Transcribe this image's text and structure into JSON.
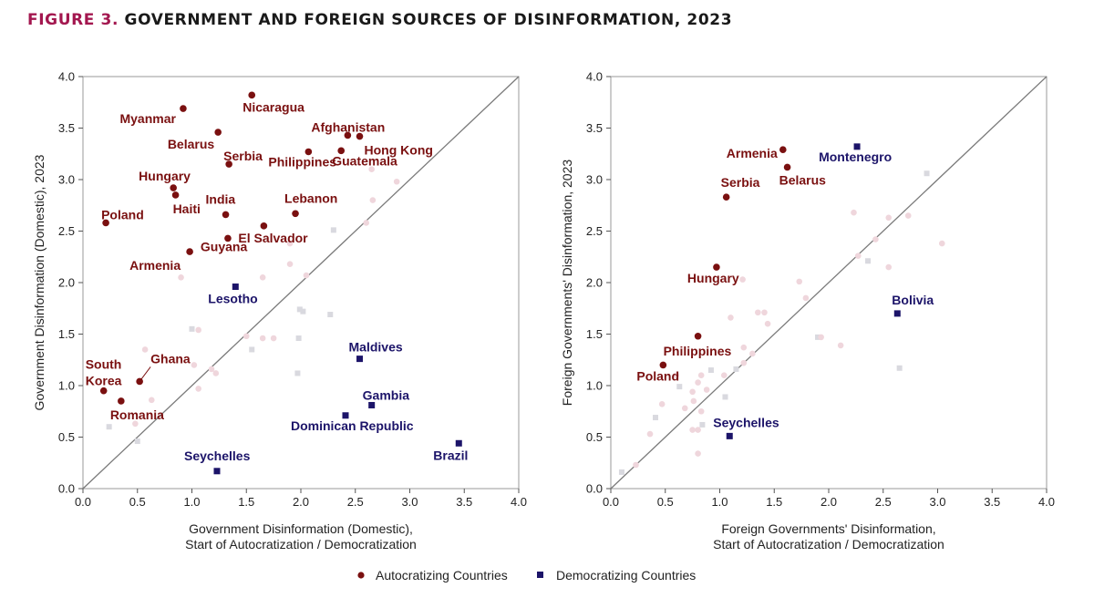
{
  "figure": {
    "number_label": "FIGURE 3.",
    "title": "GOVERNMENT AND FOREIGN SOURCES OF DISINFORMATION, 2023"
  },
  "colors": {
    "autocratizing": "#7a1010",
    "democratizing": "#1c1469",
    "background_circle": "#efd6dc",
    "background_square": "#d9d9df",
    "diagonal": "#7a7a7a",
    "figure_number": "#a3174f"
  },
  "legend": {
    "autocratizing_label": "Autocratizing Countries",
    "democratizing_label": "Democratizing Countries"
  },
  "chart_data": [
    {
      "type": "scatter",
      "xlabel": "Government Disinformation (Domestic),\nStart of Autocratization / Democratization",
      "ylabel": "Government Disinformation (Domestic), 2023",
      "xlim": [
        0,
        4
      ],
      "ylim": [
        0,
        4
      ],
      "ticks": [
        "0.0",
        "0.5",
        "1.0",
        "1.5",
        "2.0",
        "2.5",
        "3.0",
        "3.5",
        "4.0"
      ],
      "diagonal": true,
      "grid": false,
      "legend_placement": "bottom",
      "autocratizing": [
        {
          "name": "Myanmar",
          "x": 0.92,
          "y": 3.69
        },
        {
          "name": "Nicaragua",
          "x": 1.55,
          "y": 3.82
        },
        {
          "name": "Belarus",
          "x": 1.24,
          "y": 3.46
        },
        {
          "name": "Afghanistan",
          "x": 2.43,
          "y": 3.43
        },
        {
          "name": "Hong Kong",
          "x": 2.54,
          "y": 3.42
        },
        {
          "name": "Serbia",
          "x": 1.34,
          "y": 3.15
        },
        {
          "name": "Philippines",
          "x": 2.07,
          "y": 3.27
        },
        {
          "name": "Guatemala",
          "x": 2.37,
          "y": 3.28
        },
        {
          "name": "Hungary",
          "x": 0.83,
          "y": 2.92
        },
        {
          "name": "Haiti",
          "x": 0.85,
          "y": 2.85
        },
        {
          "name": "India",
          "x": 1.31,
          "y": 2.66
        },
        {
          "name": "Poland",
          "x": 0.21,
          "y": 2.58
        },
        {
          "name": "Lebanon",
          "x": 1.95,
          "y": 2.67
        },
        {
          "name": "El Salvador",
          "x": 1.66,
          "y": 2.55
        },
        {
          "name": "Guyana",
          "x": 1.33,
          "y": 2.43
        },
        {
          "name": "Armenia",
          "x": 0.98,
          "y": 2.3
        },
        {
          "name": "South Korea",
          "x": 0.19,
          "y": 0.95
        },
        {
          "name": "Ghana",
          "x": 0.52,
          "y": 1.04
        },
        {
          "name": "Romania",
          "x": 0.35,
          "y": 0.85
        }
      ],
      "democratizing": [
        {
          "name": "Lesotho",
          "x": 1.4,
          "y": 1.96
        },
        {
          "name": "Maldives",
          "x": 2.54,
          "y": 1.26
        },
        {
          "name": "Gambia",
          "x": 2.65,
          "y": 0.81
        },
        {
          "name": "Dominican Republic",
          "x": 2.41,
          "y": 0.71
        },
        {
          "name": "Brazil",
          "x": 3.45,
          "y": 0.44
        },
        {
          "name": "Seychelles",
          "x": 1.23,
          "y": 0.17
        }
      ],
      "background_circles": [
        [
          2.88,
          2.98
        ],
        [
          2.66,
          2.8
        ],
        [
          2.6,
          2.58
        ],
        [
          2.65,
          3.1
        ],
        [
          1.9,
          2.38
        ],
        [
          1.9,
          2.18
        ],
        [
          2.05,
          2.07
        ],
        [
          1.65,
          2.05
        ],
        [
          0.9,
          2.05
        ],
        [
          1.65,
          1.46
        ],
        [
          1.75,
          1.46
        ],
        [
          1.06,
          1.54
        ],
        [
          0.57,
          1.35
        ],
        [
          1.02,
          1.2
        ],
        [
          1.22,
          1.12
        ],
        [
          1.18,
          1.16
        ],
        [
          1.06,
          0.97
        ],
        [
          0.63,
          0.86
        ],
        [
          0.48,
          0.63
        ],
        [
          1.5,
          1.48
        ]
      ],
      "background_squares": [
        [
          2.3,
          2.51
        ],
        [
          1.99,
          1.74
        ],
        [
          2.02,
          1.72
        ],
        [
          1.98,
          1.46
        ],
        [
          2.27,
          1.69
        ],
        [
          1.97,
          1.12
        ],
        [
          1.55,
          1.35
        ],
        [
          1.0,
          1.55
        ],
        [
          0.5,
          0.46
        ],
        [
          0.24,
          0.6
        ]
      ]
    },
    {
      "type": "scatter",
      "xlabel": "Foreign Governments' Disinformation,\nStart of Autocratization / Democratization",
      "ylabel": "Foreign Governments' Disinformation, 2023",
      "xlim": [
        0,
        4
      ],
      "ylim": [
        0,
        4
      ],
      "ticks": [
        "0.0",
        "0.5",
        "1.0",
        "1.5",
        "2.0",
        "2.5",
        "3.0",
        "3.5",
        "4.0"
      ],
      "diagonal": true,
      "grid": false,
      "legend_placement": "bottom",
      "autocratizing": [
        {
          "name": "Armenia",
          "x": 1.58,
          "y": 3.29
        },
        {
          "name": "Belarus",
          "x": 1.62,
          "y": 3.12
        },
        {
          "name": "Serbia",
          "x": 1.06,
          "y": 2.83
        },
        {
          "name": "Hungary",
          "x": 0.97,
          "y": 2.15
        },
        {
          "name": "Philippines",
          "x": 0.8,
          "y": 1.48
        },
        {
          "name": "Poland",
          "x": 0.48,
          "y": 1.2
        }
      ],
      "democratizing": [
        {
          "name": "Montenegro",
          "x": 2.26,
          "y": 3.32
        },
        {
          "name": "Bolivia",
          "x": 2.63,
          "y": 1.7
        },
        {
          "name": "Seychelles",
          "x": 1.09,
          "y": 0.51
        }
      ],
      "background_circles": [
        [
          2.23,
          2.68
        ],
        [
          2.73,
          2.65
        ],
        [
          2.55,
          2.63
        ],
        [
          3.04,
          2.38
        ],
        [
          2.43,
          2.42
        ],
        [
          2.27,
          2.26
        ],
        [
          2.55,
          2.15
        ],
        [
          1.21,
          2.03
        ],
        [
          1.73,
          2.01
        ],
        [
          1.79,
          1.85
        ],
        [
          1.35,
          1.71
        ],
        [
          1.41,
          1.71
        ],
        [
          1.44,
          1.6
        ],
        [
          1.1,
          1.66
        ],
        [
          1.93,
          1.47
        ],
        [
          2.11,
          1.39
        ],
        [
          1.22,
          1.37
        ],
        [
          1.3,
          1.31
        ],
        [
          1.22,
          1.22
        ],
        [
          0.6,
          1.1
        ],
        [
          0.83,
          1.1
        ],
        [
          0.8,
          1.03
        ],
        [
          0.88,
          0.96
        ],
        [
          0.75,
          0.94
        ],
        [
          0.76,
          0.85
        ],
        [
          0.83,
          0.75
        ],
        [
          0.68,
          0.78
        ],
        [
          0.8,
          0.57
        ],
        [
          0.75,
          0.57
        ],
        [
          0.36,
          0.53
        ],
        [
          0.8,
          0.34
        ],
        [
          0.47,
          0.82
        ],
        [
          1.04,
          1.1
        ],
        [
          0.23,
          0.23
        ]
      ],
      "background_squares": [
        [
          2.9,
          3.06
        ],
        [
          2.36,
          2.21
        ],
        [
          2.65,
          1.17
        ],
        [
          1.9,
          1.47
        ],
        [
          0.92,
          1.15
        ],
        [
          0.63,
          0.99
        ],
        [
          1.05,
          0.89
        ],
        [
          0.84,
          0.62
        ],
        [
          0.41,
          0.69
        ],
        [
          1.15,
          1.16
        ],
        [
          0.1,
          0.16
        ]
      ]
    }
  ]
}
